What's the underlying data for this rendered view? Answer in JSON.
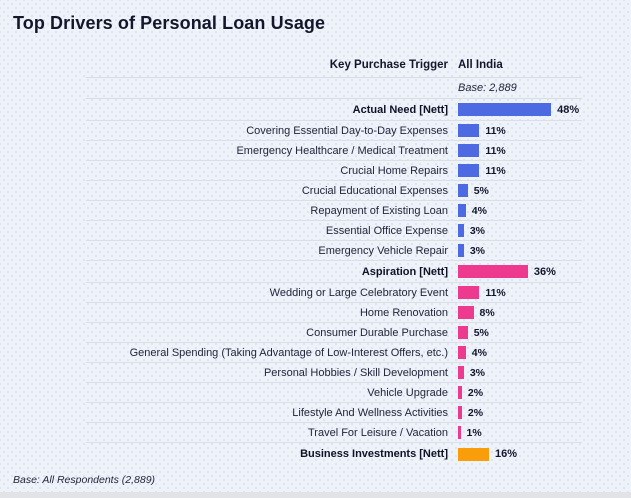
{
  "title": "Top Drivers of Personal Loan Usage",
  "table_header": {
    "left": "Key Purchase Trigger",
    "right": "All India",
    "base_note": "Base: 2,889"
  },
  "footer": {
    "base_note": "Base: All Respondents (2,889)"
  },
  "colors": {
    "blue": "#4d6ae3",
    "pink": "#ee3a8e",
    "orange": "#f99d0b",
    "background": "#eef2f9",
    "text": "#14162b",
    "divider": "#dcdfe5"
  },
  "chart_data": {
    "type": "bar",
    "orientation": "horizontal",
    "title": "Top Drivers of Personal Loan Usage",
    "column_header": "Key Purchase Trigger",
    "value_header": "All India",
    "unit": "%",
    "xlim": [
      0,
      50
    ],
    "grid": false,
    "legend": "none",
    "base": "Base: 2,889",
    "rows": [
      {
        "label": "Actual Need [Nett]",
        "value": 48,
        "color": "blue",
        "nett": true
      },
      {
        "label": "Covering Essential Day-to-Day Expenses",
        "value": 11,
        "color": "blue",
        "nett": false
      },
      {
        "label": "Emergency Healthcare / Medical Treatment",
        "value": 11,
        "color": "blue",
        "nett": false
      },
      {
        "label": "Crucial Home Repairs",
        "value": 11,
        "color": "blue",
        "nett": false
      },
      {
        "label": "Crucial Educational Expenses",
        "value": 5,
        "color": "blue",
        "nett": false
      },
      {
        "label": "Repayment of Existing Loan",
        "value": 4,
        "color": "blue",
        "nett": false
      },
      {
        "label": "Essential Office Expense",
        "value": 3,
        "color": "blue",
        "nett": false
      },
      {
        "label": "Emergency Vehicle Repair",
        "value": 3,
        "color": "blue",
        "nett": false
      },
      {
        "label": "Aspiration [Nett]",
        "value": 36,
        "color": "pink",
        "nett": true
      },
      {
        "label": "Wedding or Large Celebratory Event",
        "value": 11,
        "color": "pink",
        "nett": false
      },
      {
        "label": "Home Renovation",
        "value": 8,
        "color": "pink",
        "nett": false
      },
      {
        "label": "Consumer Durable Purchase",
        "value": 5,
        "color": "pink",
        "nett": false
      },
      {
        "label": "General Spending (Taking Advantage of Low-Interest Offers, etc.)",
        "value": 4,
        "color": "pink",
        "nett": false
      },
      {
        "label": "Personal Hobbies / Skill Development",
        "value": 3,
        "color": "pink",
        "nett": false
      },
      {
        "label": "Vehicle Upgrade",
        "value": 2,
        "color": "pink",
        "nett": false
      },
      {
        "label": "Lifestyle And Wellness Activities",
        "value": 2,
        "color": "pink",
        "nett": false
      },
      {
        "label": "Travel For Leisure / Vacation",
        "value": 1,
        "color": "pink",
        "nett": false
      },
      {
        "label": "Business Investments [Nett]",
        "value": 16,
        "color": "orange",
        "nett": true
      }
    ]
  }
}
